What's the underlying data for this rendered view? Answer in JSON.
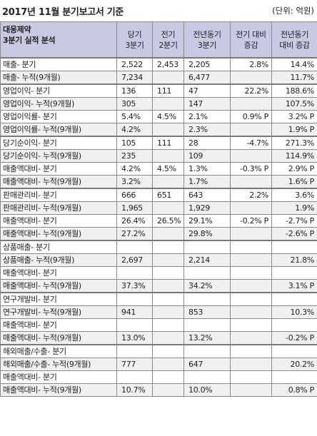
{
  "title": "2017년 11월 분기보고서 기준",
  "unit": "(단위: 억원)",
  "columns": {
    "label_line1": "대웅제약",
    "label_line2": "3분기 실적 분석",
    "c1": [
      "당기",
      "3분기"
    ],
    "c2": [
      "전기",
      "2분기"
    ],
    "c3": [
      "전년동기",
      "3분기"
    ],
    "c4": [
      "전기 대비",
      "증감"
    ],
    "c5": [
      "전년동기",
      "대비 증감"
    ]
  },
  "sections": [
    {
      "rows": [
        {
          "label": "매출- 분기",
          "c1": "2,522",
          "c2": "2,453",
          "c3": "2,205",
          "c4": "2.8%",
          "c5": "14.4%"
        },
        {
          "label": "매출- 누적(9개월)",
          "c1": "7,234",
          "c2": "",
          "c3": "6,477",
          "c4": "",
          "c5": "11.7%"
        }
      ]
    },
    {
      "rows": [
        {
          "label": "영업이익- 분기",
          "c1": "136",
          "c2": "111",
          "c3": "47",
          "c4": "22.2%",
          "c5": "188.6%"
        },
        {
          "label": "영업이익- 누적(9개월)",
          "c1": "305",
          "c2": "",
          "c3": "147",
          "c4": "",
          "c5": "107.5%"
        },
        {
          "label": "영업이익률- 분기",
          "c1": "5.4%",
          "c2": "4.5%",
          "c3": "2.1%",
          "c4": "0.9% P",
          "c5": "3.2% P"
        },
        {
          "label": "영업이익률- 누적(9개월)",
          "c1": "4.2%",
          "c2": "",
          "c3": "2.3%",
          "c4": "",
          "c5": "1.9% P"
        }
      ]
    },
    {
      "rows": [
        {
          "label": "당기순이익- 분기",
          "c1": "105",
          "c2": "111",
          "c3": "28",
          "c4": "-4.7%",
          "c5": "271.3%"
        },
        {
          "label": "당기순이익- 누적(9개월)",
          "c1": "235",
          "c2": "",
          "c3": "109",
          "c4": "",
          "c5": "114.9%"
        },
        {
          "label": "매출액대비- 분기",
          "c1": "4.2%",
          "c2": "4.5%",
          "c3": "1.3%",
          "c4": "-0.3% P",
          "c5": "2.9% P"
        },
        {
          "label": "매출액대비- 누적(9개월)",
          "c1": "3.2%",
          "c2": "",
          "c3": "1.7%",
          "c4": "",
          "c5": "1.6% P"
        }
      ]
    },
    {
      "rows": [
        {
          "label": "판매관리비- 분기",
          "c1": "666",
          "c2": "651",
          "c3": "643",
          "c4": "2.2%",
          "c5": "3.6%"
        },
        {
          "label": "판매관리비- 누적(9개월)",
          "c1": "1,965",
          "c2": "",
          "c3": "1,929",
          "c4": "",
          "c5": "1.9%"
        },
        {
          "label": "매출액대비- 분기",
          "c1": "26.4%",
          "c2": "26.5%",
          "c3": "29.1%",
          "c4": "-0.2% P",
          "c5": "-2.7% P"
        },
        {
          "label": "매출액대비- 누적(9개월)",
          "c1": "27.2%",
          "c2": "",
          "c3": "29.8%",
          "c4": "",
          "c5": "-2.6% P"
        }
      ]
    },
    {
      "rows": [
        {
          "label": "상품매출- 분기",
          "c1": "",
          "c2": "",
          "c3": "",
          "c4": "",
          "c5": ""
        },
        {
          "label": "상품매출- 누적(9개월)",
          "c1": "2,697",
          "c2": "",
          "c3": "2,214",
          "c4": "",
          "c5": "21.8%"
        },
        {
          "label": "매출액대비- 분기",
          "c1": "",
          "c2": "",
          "c3": "",
          "c4": "",
          "c5": ""
        },
        {
          "label": "매출액대비- 누적(9개월)",
          "c1": "37.3%",
          "c2": "",
          "c3": "34.2%",
          "c4": "",
          "c5": "3.1% P"
        }
      ]
    },
    {
      "rows": [
        {
          "label": "연구개발비- 분기",
          "c1": "",
          "c2": "",
          "c3": "",
          "c4": "",
          "c5": ""
        },
        {
          "label": "연구개발비- 누적(9개월)",
          "c1": "941",
          "c2": "",
          "c3": "853",
          "c4": "",
          "c5": "10.3%"
        },
        {
          "label": "매출액대비- 분기",
          "c1": "",
          "c2": "",
          "c3": "",
          "c4": "",
          "c5": ""
        },
        {
          "label": "매출액대비- 누적(9개월)",
          "c1": "13.0%",
          "c2": "",
          "c3": "13.2%",
          "c4": "",
          "c5": "-0.2% P"
        }
      ]
    },
    {
      "rows": [
        {
          "label": "해외매출/수출- 분기",
          "c1": "",
          "c2": "",
          "c3": "",
          "c4": "",
          "c5": ""
        },
        {
          "label": "해외매출/수출- 누적(9개월)",
          "c1": "777",
          "c2": "",
          "c3": "647",
          "c4": "",
          "c5": "20.2%"
        },
        {
          "label": "매출액대비- 분기",
          "c1": "",
          "c2": "",
          "c3": "",
          "c4": "",
          "c5": ""
        },
        {
          "label": "매출액대비- 누적(9개월)",
          "c1": "10.7%",
          "c2": "",
          "c3": "10.0%",
          "c4": "",
          "c5": "0.8% P"
        }
      ]
    }
  ]
}
